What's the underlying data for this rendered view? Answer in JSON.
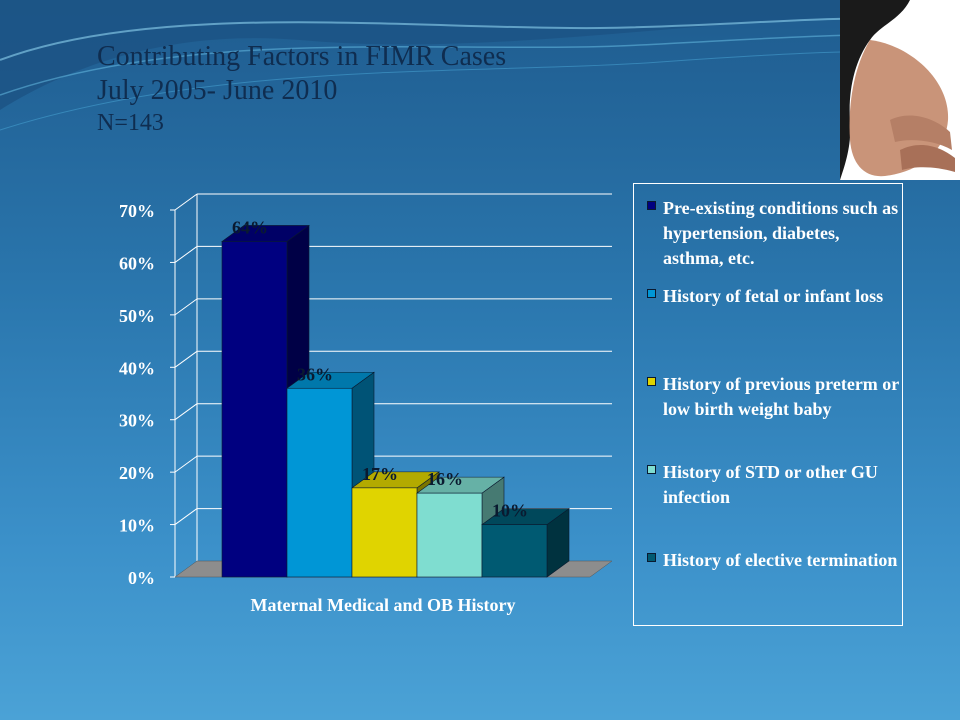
{
  "slide": {
    "title": "Contributing Factors in FIMR Cases",
    "subtitle": "July 2005- June 2010",
    "n_label": "N=143",
    "photo_icon": "pregnant-belly-photo"
  },
  "colors": {
    "title_text": "#0f2d50",
    "axis_text": "#ffffff",
    "gridline": "#ffffff",
    "floor": "#8d8d8d"
  },
  "chart_data": {
    "type": "bar",
    "title": "",
    "xlabel": "Maternal Medical and OB History",
    "ylabel": "",
    "ylim": [
      0,
      70
    ],
    "yticks": [
      0,
      10,
      20,
      30,
      40,
      50,
      60,
      70
    ],
    "ytick_labels": [
      "0%",
      "10%",
      "20%",
      "30%",
      "40%",
      "50%",
      "60%",
      "70%"
    ],
    "grid": true,
    "legend_position": "right",
    "categories": [
      "Maternal Medical and OB History"
    ],
    "series": [
      {
        "name": "Pre-existing conditions such as hypertension, diabetes, asthma, etc.",
        "value": 64,
        "label": "64%",
        "color": "#000080"
      },
      {
        "name": "History of fetal or infant loss",
        "value": 36,
        "label": "36%",
        "color": "#0096d6"
      },
      {
        "name": "History of previous preterm or low birth weight baby",
        "value": 17,
        "label": "17%",
        "color": "#e0d400"
      },
      {
        "name": "History of STD or other GU infection",
        "value": 16,
        "label": "16%",
        "color": "#7fddd0"
      },
      {
        "name": "History of elective termination",
        "value": 10,
        "label": "10%",
        "color": "#005a72"
      }
    ]
  }
}
